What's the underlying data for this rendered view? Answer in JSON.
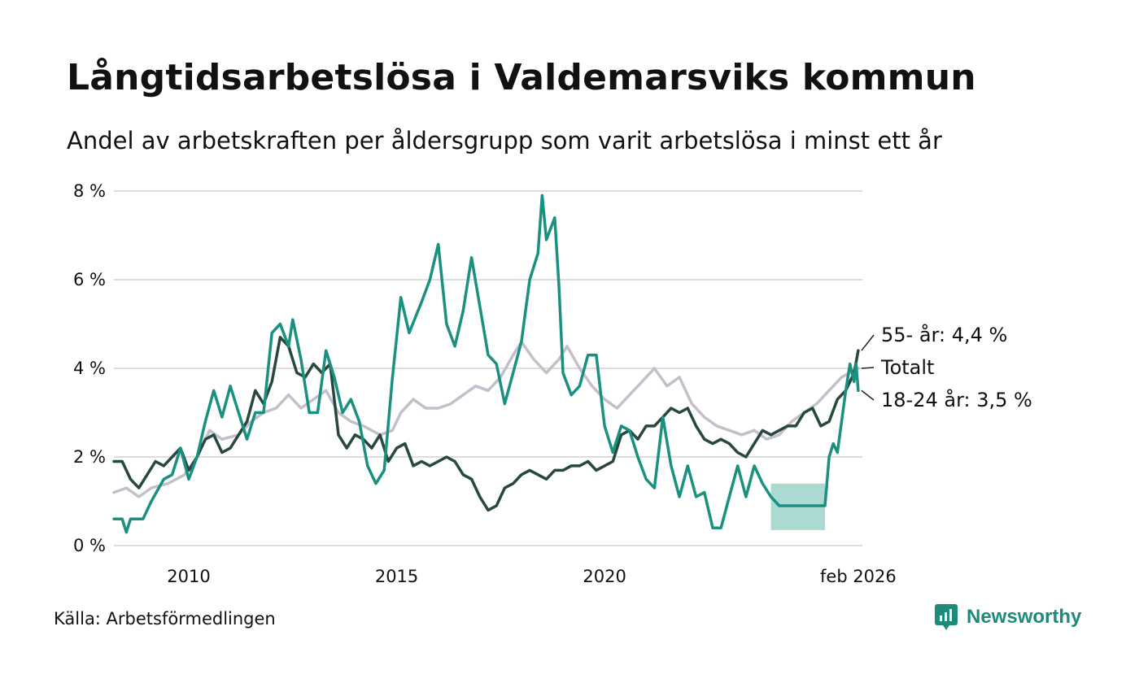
{
  "chart_data": {
    "type": "line",
    "title": "Långtidsarbetslösa i Valdemarsviks kommun",
    "subtitle": "Andel av arbetskraften per åldersgrupp som varit arbetslösa i minst ett år",
    "source": "Källa: Arbetsförmedlingen",
    "brand": "Newsworthy",
    "xlabel": "",
    "ylabel": "",
    "xlim": [
      2008.2,
      2026.2
    ],
    "ylim": [
      0,
      8
    ],
    "y_ticks": [
      {
        "value": 0,
        "label": "0 %"
      },
      {
        "value": 2,
        "label": "2 %"
      },
      {
        "value": 4,
        "label": "4 %"
      },
      {
        "value": 6,
        "label": "6 %"
      },
      {
        "value": 8,
        "label": "8 %"
      }
    ],
    "x_ticks": [
      {
        "value": 2010,
        "label": "2010"
      },
      {
        "value": 2015,
        "label": "2015"
      },
      {
        "value": 2020,
        "label": "2020"
      },
      {
        "value": 2026.1,
        "label": "feb 2026"
      }
    ],
    "grid": true,
    "colors": {
      "total": "#c3c0cc",
      "age55": "#27473f",
      "age1824": "#1a9080",
      "band": "#a6d8d0",
      "grid": "#dddddd",
      "brand": "#1e8a7a"
    },
    "series": [
      {
        "name": "Totalt",
        "label": "Totalt",
        "points": [
          [
            2008.2,
            1.2
          ],
          [
            2008.5,
            1.3
          ],
          [
            2008.8,
            1.1
          ],
          [
            2009.1,
            1.3
          ],
          [
            2009.5,
            1.4
          ],
          [
            2009.9,
            1.6
          ],
          [
            2010.2,
            2.0
          ],
          [
            2010.5,
            2.6
          ],
          [
            2010.8,
            2.4
          ],
          [
            2011.2,
            2.5
          ],
          [
            2011.5,
            2.8
          ],
          [
            2011.8,
            3.0
          ],
          [
            2012.1,
            3.1
          ],
          [
            2012.4,
            3.4
          ],
          [
            2012.7,
            3.1
          ],
          [
            2013.0,
            3.3
          ],
          [
            2013.3,
            3.5
          ],
          [
            2013.6,
            3.0
          ],
          [
            2013.9,
            2.8
          ],
          [
            2014.2,
            2.7
          ],
          [
            2014.6,
            2.5
          ],
          [
            2014.9,
            2.6
          ],
          [
            2015.1,
            3.0
          ],
          [
            2015.4,
            3.3
          ],
          [
            2015.7,
            3.1
          ],
          [
            2016.0,
            3.1
          ],
          [
            2016.3,
            3.2
          ],
          [
            2016.6,
            3.4
          ],
          [
            2016.9,
            3.6
          ],
          [
            2017.2,
            3.5
          ],
          [
            2017.5,
            3.8
          ],
          [
            2017.8,
            4.3
          ],
          [
            2018.0,
            4.6
          ],
          [
            2018.3,
            4.2
          ],
          [
            2018.6,
            3.9
          ],
          [
            2018.9,
            4.2
          ],
          [
            2019.1,
            4.5
          ],
          [
            2019.4,
            4.0
          ],
          [
            2019.7,
            3.6
          ],
          [
            2020.0,
            3.3
          ],
          [
            2020.3,
            3.1
          ],
          [
            2020.6,
            3.4
          ],
          [
            2020.9,
            3.7
          ],
          [
            2021.2,
            4.0
          ],
          [
            2021.5,
            3.6
          ],
          [
            2021.8,
            3.8
          ],
          [
            2022.1,
            3.2
          ],
          [
            2022.4,
            2.9
          ],
          [
            2022.7,
            2.7
          ],
          [
            2023.0,
            2.6
          ],
          [
            2023.3,
            2.5
          ],
          [
            2023.6,
            2.6
          ],
          [
            2023.9,
            2.4
          ],
          [
            2024.2,
            2.5
          ],
          [
            2024.5,
            2.8
          ],
          [
            2024.8,
            3.0
          ],
          [
            2025.1,
            3.2
          ],
          [
            2025.4,
            3.5
          ],
          [
            2025.7,
            3.8
          ],
          [
            2026.1,
            4.0
          ]
        ]
      },
      {
        "name": "55- år",
        "label": "55- år: 4,4 %",
        "points": [
          [
            2008.2,
            1.9
          ],
          [
            2008.4,
            1.9
          ],
          [
            2008.6,
            1.5
          ],
          [
            2008.8,
            1.3
          ],
          [
            2009.0,
            1.6
          ],
          [
            2009.2,
            1.9
          ],
          [
            2009.4,
            1.8
          ],
          [
            2009.6,
            2.0
          ],
          [
            2009.8,
            2.2
          ],
          [
            2010.0,
            1.7
          ],
          [
            2010.2,
            2.0
          ],
          [
            2010.4,
            2.4
          ],
          [
            2010.6,
            2.5
          ],
          [
            2010.8,
            2.1
          ],
          [
            2011.0,
            2.2
          ],
          [
            2011.2,
            2.5
          ],
          [
            2011.4,
            2.8
          ],
          [
            2011.6,
            3.5
          ],
          [
            2011.8,
            3.2
          ],
          [
            2012.0,
            3.7
          ],
          [
            2012.2,
            4.7
          ],
          [
            2012.4,
            4.5
          ],
          [
            2012.6,
            3.9
          ],
          [
            2012.8,
            3.8
          ],
          [
            2013.0,
            4.1
          ],
          [
            2013.2,
            3.9
          ],
          [
            2013.4,
            4.1
          ],
          [
            2013.6,
            2.5
          ],
          [
            2013.8,
            2.2
          ],
          [
            2014.0,
            2.5
          ],
          [
            2014.2,
            2.4
          ],
          [
            2014.4,
            2.2
          ],
          [
            2014.6,
            2.5
          ],
          [
            2014.8,
            1.9
          ],
          [
            2015.0,
            2.2
          ],
          [
            2015.2,
            2.3
          ],
          [
            2015.4,
            1.8
          ],
          [
            2015.6,
            1.9
          ],
          [
            2015.8,
            1.8
          ],
          [
            2016.0,
            1.9
          ],
          [
            2016.2,
            2.0
          ],
          [
            2016.4,
            1.9
          ],
          [
            2016.6,
            1.6
          ],
          [
            2016.8,
            1.5
          ],
          [
            2017.0,
            1.1
          ],
          [
            2017.2,
            0.8
          ],
          [
            2017.4,
            0.9
          ],
          [
            2017.6,
            1.3
          ],
          [
            2017.8,
            1.4
          ],
          [
            2018.0,
            1.6
          ],
          [
            2018.2,
            1.7
          ],
          [
            2018.4,
            1.6
          ],
          [
            2018.6,
            1.5
          ],
          [
            2018.8,
            1.7
          ],
          [
            2019.0,
            1.7
          ],
          [
            2019.2,
            1.8
          ],
          [
            2019.4,
            1.8
          ],
          [
            2019.6,
            1.9
          ],
          [
            2019.8,
            1.7
          ],
          [
            2020.0,
            1.8
          ],
          [
            2020.2,
            1.9
          ],
          [
            2020.4,
            2.5
          ],
          [
            2020.6,
            2.6
          ],
          [
            2020.8,
            2.4
          ],
          [
            2021.0,
            2.7
          ],
          [
            2021.2,
            2.7
          ],
          [
            2021.4,
            2.9
          ],
          [
            2021.6,
            3.1
          ],
          [
            2021.8,
            3.0
          ],
          [
            2022.0,
            3.1
          ],
          [
            2022.2,
            2.7
          ],
          [
            2022.4,
            2.4
          ],
          [
            2022.6,
            2.3
          ],
          [
            2022.8,
            2.4
          ],
          [
            2023.0,
            2.3
          ],
          [
            2023.2,
            2.1
          ],
          [
            2023.4,
            2.0
          ],
          [
            2023.6,
            2.3
          ],
          [
            2023.8,
            2.6
          ],
          [
            2024.0,
            2.5
          ],
          [
            2024.2,
            2.6
          ],
          [
            2024.4,
            2.7
          ],
          [
            2024.6,
            2.7
          ],
          [
            2024.8,
            3.0
          ],
          [
            2025.0,
            3.1
          ],
          [
            2025.2,
            2.7
          ],
          [
            2025.4,
            2.8
          ],
          [
            2025.6,
            3.3
          ],
          [
            2025.8,
            3.5
          ],
          [
            2026.0,
            3.9
          ],
          [
            2026.1,
            4.4
          ]
        ]
      },
      {
        "name": "18-24 år",
        "label": "18-24 år: 3,5 %",
        "points": [
          [
            2008.2,
            0.6
          ],
          [
            2008.4,
            0.6
          ],
          [
            2008.5,
            0.3
          ],
          [
            2008.6,
            0.6
          ],
          [
            2008.9,
            0.6
          ],
          [
            2009.1,
            1.0
          ],
          [
            2009.4,
            1.5
          ],
          [
            2009.6,
            1.6
          ],
          [
            2009.8,
            2.2
          ],
          [
            2010.0,
            1.5
          ],
          [
            2010.2,
            2.0
          ],
          [
            2010.4,
            2.8
          ],
          [
            2010.6,
            3.5
          ],
          [
            2010.8,
            2.9
          ],
          [
            2011.0,
            3.6
          ],
          [
            2011.2,
            3.0
          ],
          [
            2011.4,
            2.4
          ],
          [
            2011.6,
            3.0
          ],
          [
            2011.8,
            3.0
          ],
          [
            2012.0,
            4.8
          ],
          [
            2012.2,
            5.0
          ],
          [
            2012.4,
            4.5
          ],
          [
            2012.5,
            5.1
          ],
          [
            2012.7,
            4.2
          ],
          [
            2012.9,
            3.0
          ],
          [
            2013.1,
            3.0
          ],
          [
            2013.3,
            4.4
          ],
          [
            2013.5,
            3.8
          ],
          [
            2013.7,
            3.0
          ],
          [
            2013.9,
            3.3
          ],
          [
            2014.1,
            2.8
          ],
          [
            2014.3,
            1.8
          ],
          [
            2014.5,
            1.4
          ],
          [
            2014.7,
            1.7
          ],
          [
            2014.9,
            3.8
          ],
          [
            2015.1,
            5.6
          ],
          [
            2015.3,
            4.8
          ],
          [
            2015.6,
            5.5
          ],
          [
            2015.8,
            6.0
          ],
          [
            2016.0,
            6.8
          ],
          [
            2016.2,
            5.0
          ],
          [
            2016.4,
            4.5
          ],
          [
            2016.6,
            5.3
          ],
          [
            2016.8,
            6.5
          ],
          [
            2017.0,
            5.4
          ],
          [
            2017.2,
            4.3
          ],
          [
            2017.4,
            4.1
          ],
          [
            2017.6,
            3.2
          ],
          [
            2017.8,
            3.9
          ],
          [
            2018.0,
            4.6
          ],
          [
            2018.2,
            6.0
          ],
          [
            2018.4,
            6.6
          ],
          [
            2018.5,
            7.9
          ],
          [
            2018.6,
            6.9
          ],
          [
            2018.8,
            7.4
          ],
          [
            2018.9,
            5.9
          ],
          [
            2019.0,
            3.9
          ],
          [
            2019.2,
            3.4
          ],
          [
            2019.4,
            3.6
          ],
          [
            2019.6,
            4.3
          ],
          [
            2019.8,
            4.3
          ],
          [
            2020.0,
            2.7
          ],
          [
            2020.2,
            2.1
          ],
          [
            2020.4,
            2.7
          ],
          [
            2020.6,
            2.6
          ],
          [
            2020.8,
            2.0
          ],
          [
            2021.0,
            1.5
          ],
          [
            2021.2,
            1.3
          ],
          [
            2021.4,
            2.9
          ],
          [
            2021.6,
            1.8
          ],
          [
            2021.8,
            1.1
          ],
          [
            2022.0,
            1.8
          ],
          [
            2022.2,
            1.1
          ],
          [
            2022.4,
            1.2
          ],
          [
            2022.6,
            0.4
          ],
          [
            2022.8,
            0.4
          ],
          [
            2023.0,
            1.1
          ],
          [
            2023.2,
            1.8
          ],
          [
            2023.4,
            1.1
          ],
          [
            2023.6,
            1.8
          ],
          [
            2023.8,
            1.4
          ],
          [
            2024.0,
            1.1
          ],
          [
            2024.2,
            0.9
          ],
          [
            2024.6,
            0.9
          ],
          [
            2025.0,
            0.9
          ],
          [
            2025.3,
            0.9
          ],
          [
            2025.4,
            2.0
          ],
          [
            2025.5,
            2.3
          ],
          [
            2025.6,
            2.1
          ],
          [
            2025.8,
            3.5
          ],
          [
            2025.9,
            4.1
          ],
          [
            2026.0,
            3.7
          ],
          [
            2026.05,
            4.1
          ],
          [
            2026.1,
            3.5
          ]
        ]
      }
    ],
    "uncertainty_band": {
      "series": "18-24 år",
      "x": [
        2024.0,
        2025.3
      ],
      "low": 0.35,
      "high": 1.4
    }
  }
}
